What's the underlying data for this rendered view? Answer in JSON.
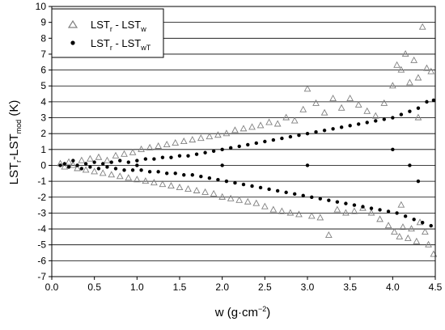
{
  "chart_data": {
    "type": "scatter",
    "title": "",
    "xlabel": {
      "base": "w (g·cm",
      "sup": "−2",
      "tail": ")"
    },
    "ylabel": {
      "base": "LST",
      "sub1": "r",
      "mid": "-LST",
      "sub2": "mod",
      "tail": " (K)"
    },
    "xlim": [
      0.0,
      4.5
    ],
    "ylim": [
      -7,
      10
    ],
    "x_ticks": [
      0.0,
      0.5,
      1.0,
      1.5,
      2.0,
      2.5,
      3.0,
      3.5,
      4.0,
      4.5
    ],
    "x_tick_labels": [
      "0.0",
      "0.5",
      "1.0",
      "1.5",
      "2.0",
      "2.5",
      "3.0",
      "3.5",
      "4.0",
      "4.5"
    ],
    "y_ticks": [
      -7,
      -6,
      -5,
      -4,
      -3,
      -2,
      -1,
      0,
      1,
      2,
      3,
      4,
      5,
      6,
      7,
      8,
      9,
      10
    ],
    "y_tick_labels": [
      "-7",
      "-6",
      "-5",
      "-4",
      "-3",
      "-2",
      "-1",
      "0",
      "1",
      "2",
      "3",
      "4",
      "5",
      "6",
      "7",
      "8",
      "9",
      "10"
    ],
    "grid": "horizontal",
    "legend_placement": "top-left",
    "series": [
      {
        "name": {
          "a": "LST",
          "a_sub": "r",
          "mid": " - LST",
          "b_sub": "w"
        },
        "marker": "open-triangle",
        "color": "#808080",
        "points": [
          [
            0.1,
            0.1
          ],
          [
            0.15,
            -0.1
          ],
          [
            0.2,
            0.2
          ],
          [
            0.25,
            0.0
          ],
          [
            0.3,
            -0.2
          ],
          [
            0.35,
            0.3
          ],
          [
            0.4,
            -0.3
          ],
          [
            0.45,
            0.4
          ],
          [
            0.5,
            -0.4
          ],
          [
            0.55,
            0.5
          ],
          [
            0.6,
            -0.5
          ],
          [
            0.65,
            0.3
          ],
          [
            0.7,
            -0.6
          ],
          [
            0.75,
            0.6
          ],
          [
            0.8,
            -0.7
          ],
          [
            0.85,
            0.7
          ],
          [
            0.9,
            -0.8
          ],
          [
            0.95,
            0.8
          ],
          [
            1.0,
            -0.9
          ],
          [
            1.05,
            1.0
          ],
          [
            1.1,
            -1.0
          ],
          [
            1.15,
            1.1
          ],
          [
            1.2,
            -1.1
          ],
          [
            1.25,
            1.2
          ],
          [
            1.3,
            -1.2
          ],
          [
            1.35,
            1.3
          ],
          [
            1.4,
            -1.3
          ],
          [
            1.45,
            1.4
          ],
          [
            1.5,
            -1.4
          ],
          [
            1.55,
            1.5
          ],
          [
            1.6,
            -1.5
          ],
          [
            1.65,
            1.6
          ],
          [
            1.7,
            -1.6
          ],
          [
            1.75,
            1.7
          ],
          [
            1.8,
            -1.7
          ],
          [
            1.85,
            1.8
          ],
          [
            1.9,
            -1.8
          ],
          [
            1.95,
            1.9
          ],
          [
            2.0,
            -2.0
          ],
          [
            2.05,
            2.0
          ],
          [
            2.1,
            -2.1
          ],
          [
            2.15,
            2.2
          ],
          [
            2.2,
            -2.2
          ],
          [
            2.25,
            2.3
          ],
          [
            2.3,
            -2.3
          ],
          [
            2.35,
            2.4
          ],
          [
            2.4,
            -2.4
          ],
          [
            2.45,
            2.5
          ],
          [
            2.5,
            -2.6
          ],
          [
            2.55,
            2.7
          ],
          [
            2.6,
            -2.8
          ],
          [
            2.65,
            2.6
          ],
          [
            2.7,
            -2.9
          ],
          [
            2.75,
            3.0
          ],
          [
            2.8,
            -3.0
          ],
          [
            2.85,
            2.8
          ],
          [
            2.9,
            -3.1
          ],
          [
            2.95,
            3.5
          ],
          [
            3.0,
            4.8
          ],
          [
            3.05,
            -3.2
          ],
          [
            3.1,
            3.9
          ],
          [
            3.15,
            -3.3
          ],
          [
            3.2,
            3.3
          ],
          [
            3.25,
            -4.4
          ],
          [
            3.3,
            4.2
          ],
          [
            3.35,
            -2.8
          ],
          [
            3.4,
            3.6
          ],
          [
            3.45,
            -3.0
          ],
          [
            3.5,
            4.2
          ],
          [
            3.55,
            -2.9
          ],
          [
            3.6,
            3.8
          ],
          [
            3.65,
            -2.7
          ],
          [
            3.7,
            3.4
          ],
          [
            3.75,
            -3.0
          ],
          [
            3.8,
            3.1
          ],
          [
            3.85,
            -3.4
          ],
          [
            3.9,
            3.9
          ],
          [
            3.95,
            -3.8
          ],
          [
            4.0,
            5.0
          ],
          [
            4.02,
            -4.2
          ],
          [
            4.05,
            6.3
          ],
          [
            4.08,
            -4.5
          ],
          [
            4.1,
            6.0
          ],
          [
            4.12,
            -3.9
          ],
          [
            4.15,
            7.0
          ],
          [
            4.18,
            -4.6
          ],
          [
            4.2,
            5.2
          ],
          [
            4.22,
            -4.0
          ],
          [
            4.25,
            6.6
          ],
          [
            4.28,
            -4.8
          ],
          [
            4.3,
            5.5
          ],
          [
            4.32,
            -3.6
          ],
          [
            4.35,
            8.7
          ],
          [
            4.38,
            -4.2
          ],
          [
            4.4,
            6.1
          ],
          [
            4.42,
            -5.0
          ],
          [
            4.45,
            5.9
          ],
          [
            4.48,
            -5.6
          ],
          [
            4.3,
            3.0
          ],
          [
            4.1,
            -2.5
          ]
        ]
      },
      {
        "name": {
          "a": "LST",
          "a_sub": "r",
          "mid": " - LST",
          "b_sub": "wT"
        },
        "marker": "filled-circle",
        "color": "#000000",
        "points": [
          [
            0.1,
            0.0
          ],
          [
            0.15,
            0.1
          ],
          [
            0.2,
            -0.1
          ],
          [
            0.25,
            0.3
          ],
          [
            0.3,
            0.0
          ],
          [
            0.35,
            -0.2
          ],
          [
            0.4,
            0.1
          ],
          [
            0.45,
            -0.1
          ],
          [
            0.5,
            0.2
          ],
          [
            0.55,
            -0.2
          ],
          [
            0.6,
            0.1
          ],
          [
            0.65,
            -0.1
          ],
          [
            0.7,
            0.2
          ],
          [
            0.75,
            -0.2
          ],
          [
            0.8,
            0.3
          ],
          [
            0.85,
            -0.3
          ],
          [
            0.9,
            0.2
          ],
          [
            0.95,
            -0.3
          ],
          [
            1.0,
            0.3
          ],
          [
            1.05,
            -0.3
          ],
          [
            1.1,
            0.4
          ],
          [
            1.15,
            -0.4
          ],
          [
            1.2,
            0.4
          ],
          [
            1.25,
            -0.4
          ],
          [
            1.3,
            0.5
          ],
          [
            1.35,
            -0.5
          ],
          [
            1.4,
            0.5
          ],
          [
            1.45,
            -0.5
          ],
          [
            1.5,
            0.6
          ],
          [
            1.55,
            -0.6
          ],
          [
            1.6,
            0.6
          ],
          [
            1.65,
            -0.6
          ],
          [
            1.7,
            0.7
          ],
          [
            1.75,
            -0.7
          ],
          [
            1.8,
            0.8
          ],
          [
            1.85,
            -0.8
          ],
          [
            1.9,
            0.9
          ],
          [
            1.95,
            -0.9
          ],
          [
            2.0,
            1.0
          ],
          [
            2.05,
            -1.0
          ],
          [
            2.1,
            1.1
          ],
          [
            2.15,
            -1.1
          ],
          [
            2.2,
            1.2
          ],
          [
            2.25,
            -1.2
          ],
          [
            2.3,
            1.3
          ],
          [
            2.35,
            -1.3
          ],
          [
            2.4,
            1.4
          ],
          [
            2.45,
            -1.4
          ],
          [
            2.5,
            1.5
          ],
          [
            2.55,
            -1.5
          ],
          [
            2.6,
            1.6
          ],
          [
            2.65,
            -1.6
          ],
          [
            2.7,
            1.7
          ],
          [
            2.75,
            -1.7
          ],
          [
            2.8,
            1.8
          ],
          [
            2.85,
            -1.8
          ],
          [
            2.9,
            1.9
          ],
          [
            2.95,
            -1.9
          ],
          [
            3.0,
            2.0
          ],
          [
            3.05,
            -2.0
          ],
          [
            3.1,
            2.1
          ],
          [
            3.15,
            -2.1
          ],
          [
            3.2,
            2.2
          ],
          [
            3.25,
            -2.2
          ],
          [
            3.3,
            2.3
          ],
          [
            3.35,
            -2.3
          ],
          [
            3.4,
            2.4
          ],
          [
            3.45,
            -2.4
          ],
          [
            3.5,
            2.5
          ],
          [
            3.55,
            -2.5
          ],
          [
            3.6,
            2.6
          ],
          [
            3.65,
            -2.6
          ],
          [
            3.7,
            2.7
          ],
          [
            3.75,
            -2.7
          ],
          [
            3.8,
            2.8
          ],
          [
            3.85,
            -2.8
          ],
          [
            3.9,
            2.9
          ],
          [
            3.95,
            -2.9
          ],
          [
            4.0,
            3.0
          ],
          [
            4.05,
            -3.0
          ],
          [
            4.1,
            3.2
          ],
          [
            4.15,
            -3.2
          ],
          [
            4.2,
            3.4
          ],
          [
            4.25,
            -3.4
          ],
          [
            4.3,
            3.6
          ],
          [
            4.35,
            -3.6
          ],
          [
            4.4,
            4.0
          ],
          [
            4.45,
            -3.8
          ],
          [
            4.48,
            4.1
          ],
          [
            4.2,
            0.0
          ],
          [
            3.0,
            0.0
          ],
          [
            2.0,
            0.0
          ],
          [
            1.0,
            0.0
          ],
          [
            4.0,
            1.0
          ],
          [
            4.3,
            -1.0
          ]
        ]
      }
    ]
  }
}
